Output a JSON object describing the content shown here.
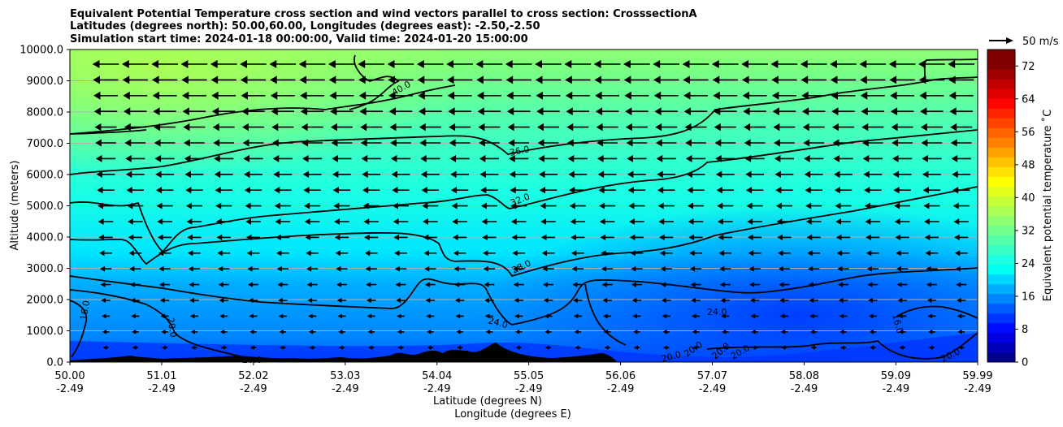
{
  "chart_data": {
    "type": "heatmap",
    "title_lines": [
      "Equivalent Potential Temperature cross section and wind vectors parallel to cross section: CrosssectionA",
      "Latitudes (degrees north): 50.00,60.00, Longitudes (degrees east): -2.50,-2.50",
      "Simulation start time: 2024-01-18 00:00:00, Valid time: 2024-01-20 15:00:00"
    ],
    "ylabel": "Altitude (meters)",
    "xlabel_lines": [
      "Latitude (degrees N)",
      "Longitude (degrees E)"
    ],
    "x_range": [
      50.0,
      59.99
    ],
    "ylim": [
      0,
      10000
    ],
    "x_ticks": [
      {
        "lat": "50.00",
        "lon": "-2.49",
        "v": 50.0
      },
      {
        "lat": "51.01",
        "lon": "-2.49",
        "v": 51.01
      },
      {
        "lat": "52.02",
        "lon": "-2.49",
        "v": 52.02
      },
      {
        "lat": "53.03",
        "lon": "-2.49",
        "v": 53.03
      },
      {
        "lat": "54.04",
        "lon": "-2.49",
        "v": 54.04
      },
      {
        "lat": "55.05",
        "lon": "-2.49",
        "v": 55.05
      },
      {
        "lat": "56.06",
        "lon": "-2.49",
        "v": 56.06
      },
      {
        "lat": "57.07",
        "lon": "-2.49",
        "v": 57.07
      },
      {
        "lat": "58.08",
        "lon": "-2.49",
        "v": 58.08
      },
      {
        "lat": "59.09",
        "lon": "-2.49",
        "v": 59.09
      },
      {
        "lat": "59.99",
        "lon": "-2.49",
        "v": 59.99
      }
    ],
    "y_ticks": [
      {
        "label": "0.0",
        "v": 0
      },
      {
        "label": "1000.0",
        "v": 1000
      },
      {
        "label": "2000.0",
        "v": 2000
      },
      {
        "label": "3000.0",
        "v": 3000
      },
      {
        "label": "4000.0",
        "v": 4000
      },
      {
        "label": "5000.0",
        "v": 5000
      },
      {
        "label": "6000.0",
        "v": 6000
      },
      {
        "label": "7000.0",
        "v": 7000
      },
      {
        "label": "8000.0",
        "v": 8000
      },
      {
        "label": "9000.0",
        "v": 9000
      },
      {
        "label": "10000.0",
        "v": 10000
      }
    ],
    "colorbar": {
      "label": "Equivalent potential temperature $^\\circ$C",
      "label_display": "Equivalent potential temperature ˚C",
      "range": [
        0,
        76
      ],
      "ticks": [
        "0",
        "8",
        "16",
        "24",
        "32",
        "40",
        "48",
        "56",
        "64",
        "72"
      ],
      "colors": [
        "#00008f",
        "#0000b8",
        "#0000e0",
        "#000bff",
        "#0034ff",
        "#005cff",
        "#0085ff",
        "#00adff",
        "#00d6ff",
        "#00fff0",
        "#1cffe3",
        "#38ffc6",
        "#55ffaa",
        "#71ff8e",
        "#8eff71",
        "#aaff55",
        "#c6ff38",
        "#e3ff1c",
        "#ffff00",
        "#ffe000",
        "#ffc100",
        "#ffa100",
        "#ff8200",
        "#ff6300",
        "#ff4300",
        "#ff2400",
        "#ff0500",
        "#e00000",
        "#c10000",
        "#a10000",
        "#820000",
        "#800000"
      ]
    },
    "wind_reference": {
      "label": "50 m/s",
      "value": 50
    },
    "contour_labels": [
      "40.0",
      "36.0",
      "32.0",
      "28.0",
      "24.0",
      "24.0",
      "20.0",
      "20.0",
      "16.0",
      "16.0",
      "20.0",
      "20.0",
      "20.0",
      "20.0",
      "20.0"
    ],
    "contour_levels": [
      16,
      20,
      24,
      28,
      32,
      36,
      40
    ],
    "theta_e_profile_samples": [
      {
        "altitude": 500,
        "values_by_lat": [
          18,
          19,
          20,
          21,
          21,
          22,
          22,
          21,
          18,
          17,
          16
        ]
      },
      {
        "altitude": 3000,
        "values_by_lat": [
          28,
          28,
          28,
          28,
          29,
          28,
          26,
          25,
          24,
          23,
          23
        ]
      },
      {
        "altitude": 6000,
        "values_by_lat": [
          34,
          34,
          34,
          34,
          34,
          33,
          33,
          32,
          31,
          31,
          31
        ]
      },
      {
        "altitude": 9000,
        "values_by_lat": [
          43,
          42,
          41,
          41,
          40,
          40,
          39,
          38,
          37,
          37,
          37
        ]
      }
    ]
  }
}
